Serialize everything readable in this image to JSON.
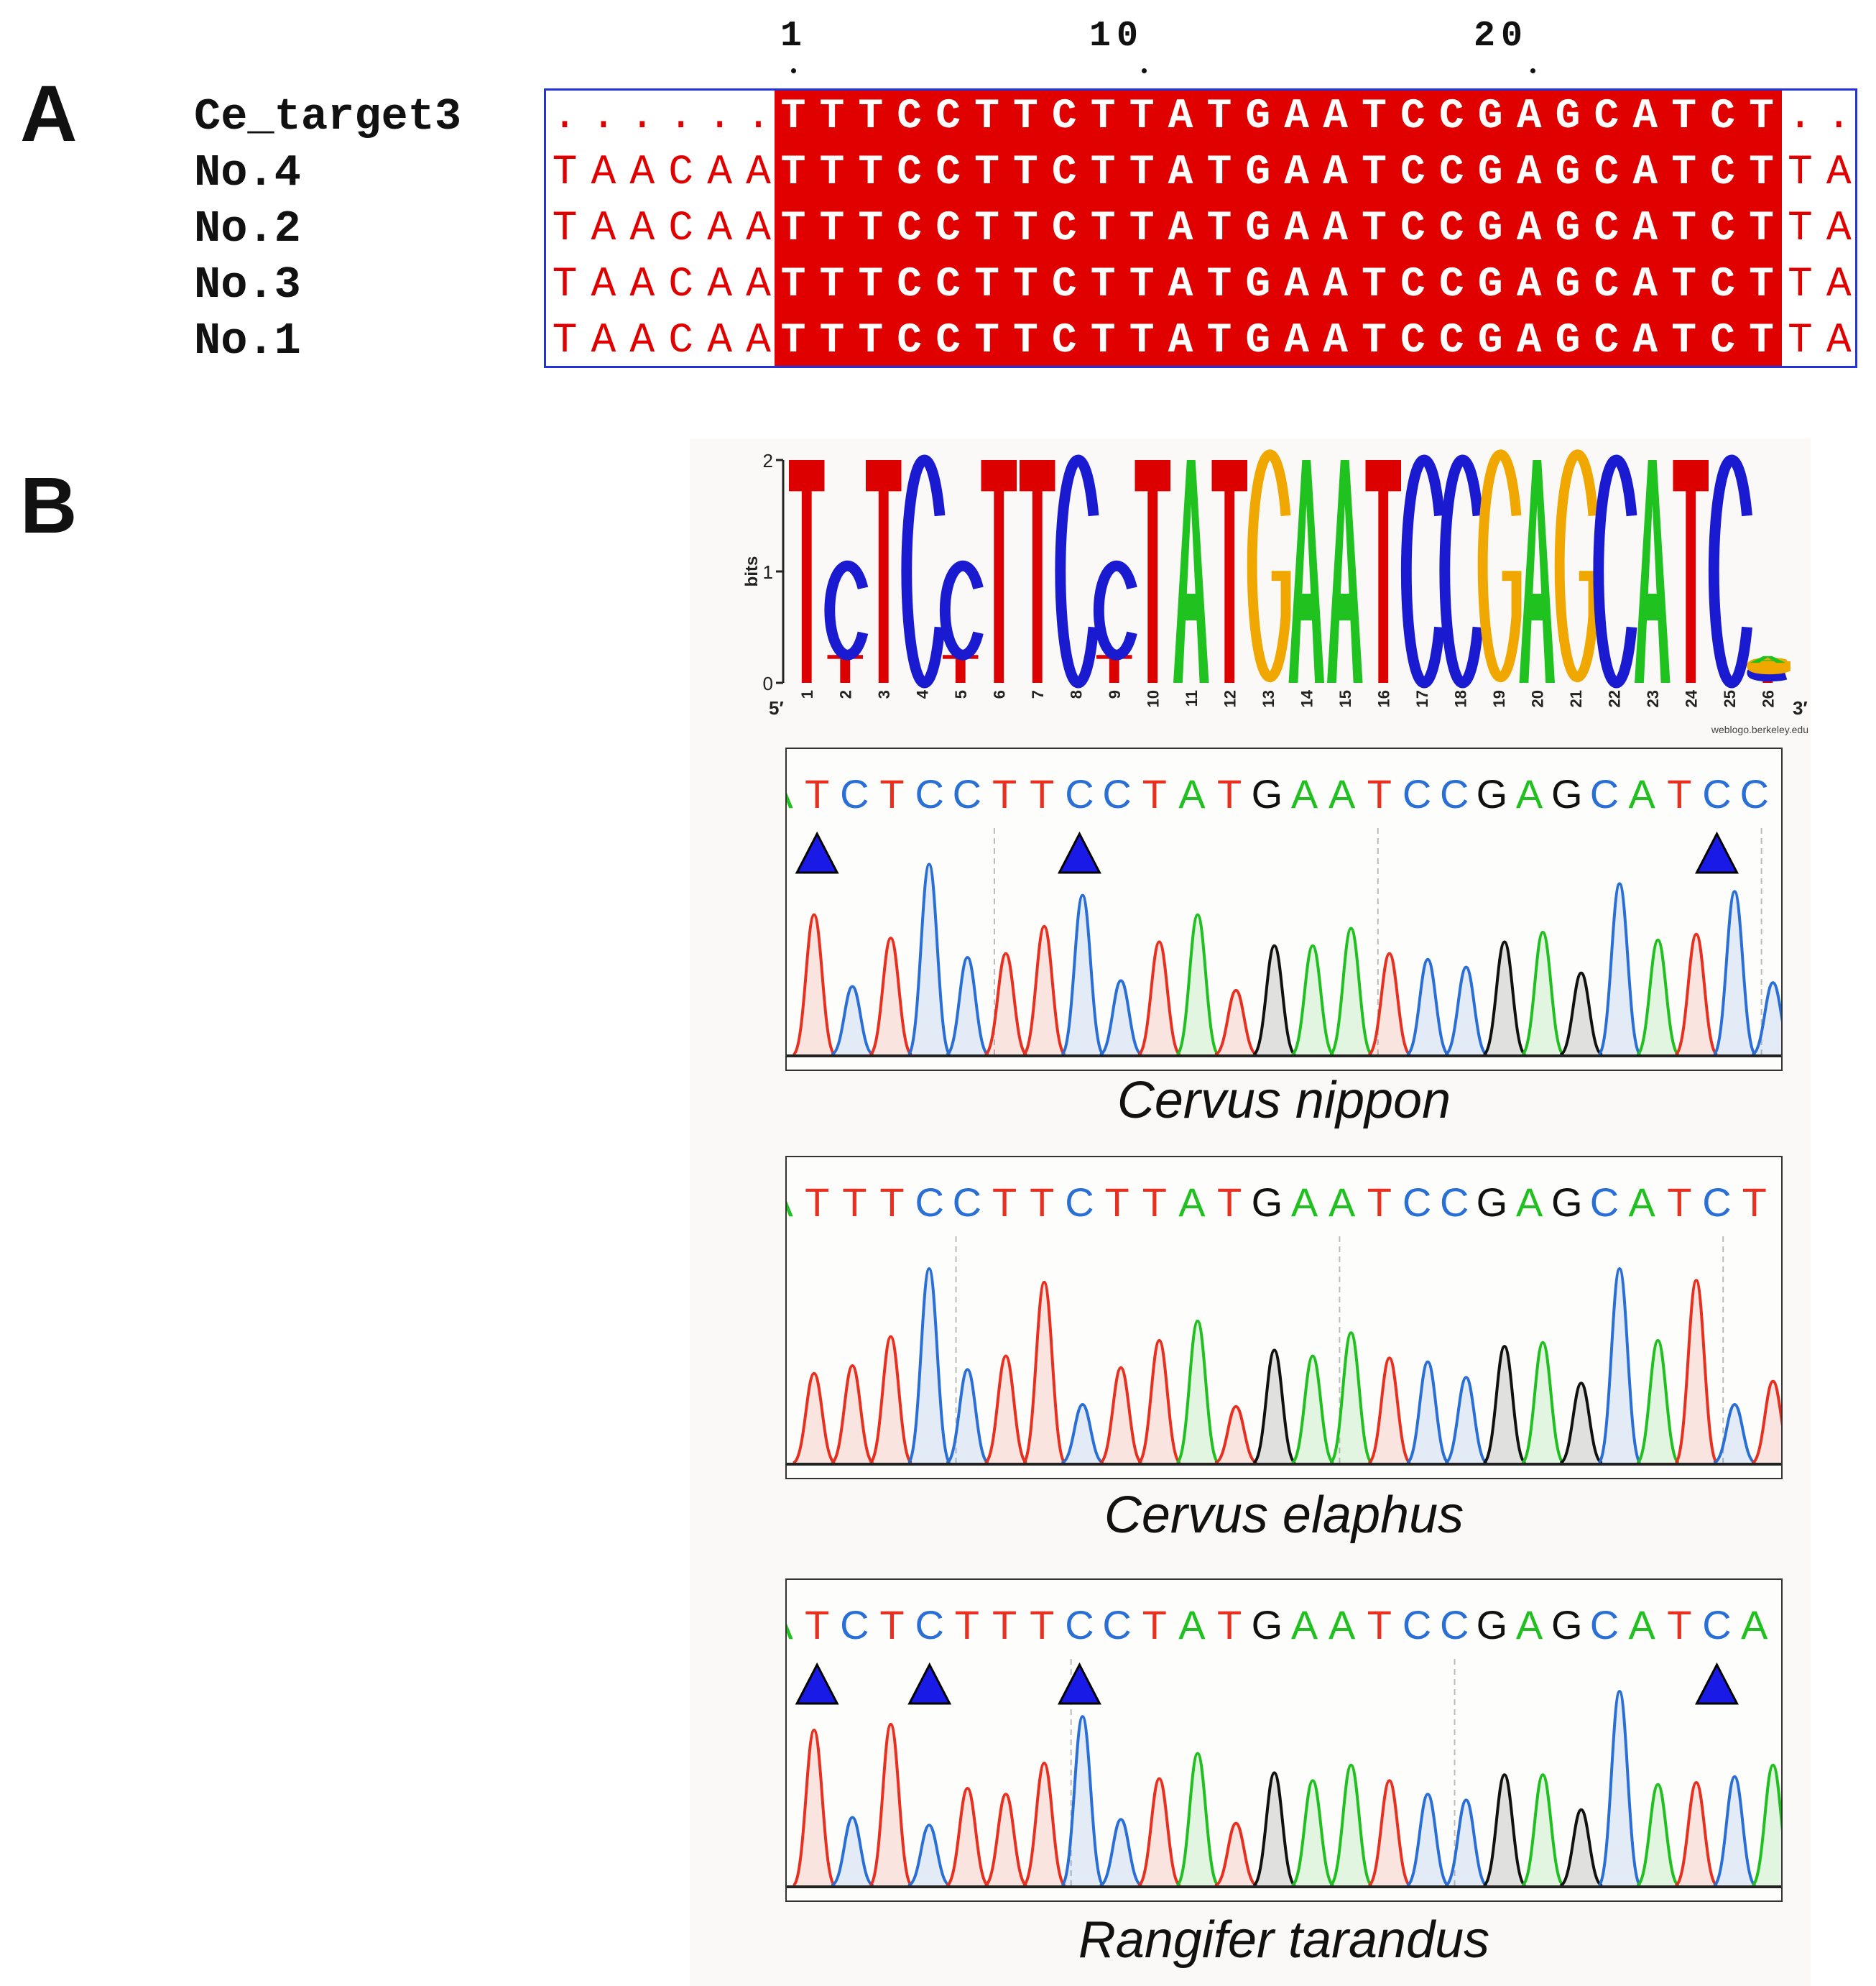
{
  "panels": {
    "a": "A",
    "b": "B"
  },
  "alignment": {
    "ruler": [
      "1",
      "10",
      "20"
    ],
    "rows": [
      {
        "name": "Ce_target3",
        "left": "......",
        "core": "TTTCCTTCTTATGAATCCGAGCATCT",
        "right": ".."
      },
      {
        "name": "No.4",
        "left": "TAACAA",
        "core": "TTTCCTTCTTATGAATCCGAGCATCT",
        "right": "TA"
      },
      {
        "name": "No.2",
        "left": "TAACAA",
        "core": "TTTCCTTCTTATGAATCCGAGCATCT",
        "right": "TA"
      },
      {
        "name": "No.3",
        "left": "TAACAA",
        "core": "TTTCCTTCTTATGAATCCGAGCATCT",
        "right": "TA"
      },
      {
        "name": "No.1",
        "left": "TAACAA",
        "core": "TTTCCTTCTTATGAATCCGAGCATCT",
        "right": "TA"
      }
    ],
    "colors": {
      "conserved_bg": "#e00000",
      "flank_text": "#e00000",
      "box": "#2233dd"
    }
  },
  "logo": {
    "ylabel": "bits",
    "yticks": [
      "0",
      "1",
      "2"
    ],
    "end5": "5′",
    "end3": "3′",
    "credit": "weblogo.berkeley.edu",
    "positions": [
      "1",
      "2",
      "3",
      "4",
      "5",
      "6",
      "7",
      "8",
      "9",
      "10",
      "11",
      "12",
      "13",
      "14",
      "15",
      "16",
      "17",
      "18",
      "19",
      "20",
      "21",
      "22",
      "23",
      "24",
      "25",
      "26"
    ],
    "stacks": [
      [
        [
          "T",
          2.0
        ]
      ],
      [
        [
          "T",
          0.25
        ],
        [
          "C",
          0.8
        ]
      ],
      [
        [
          "T",
          2.0
        ]
      ],
      [
        [
          "C",
          2.0
        ]
      ],
      [
        [
          "T",
          0.25
        ],
        [
          "C",
          0.8
        ]
      ],
      [
        [
          "T",
          2.0
        ]
      ],
      [
        [
          "T",
          2.0
        ]
      ],
      [
        [
          "C",
          2.0
        ]
      ],
      [
        [
          "T",
          0.25
        ],
        [
          "C",
          0.8
        ]
      ],
      [
        [
          "T",
          2.0
        ]
      ],
      [
        [
          "A",
          2.0
        ]
      ],
      [
        [
          "T",
          2.0
        ]
      ],
      [
        [
          "G",
          2.0
        ]
      ],
      [
        [
          "A",
          2.0
        ]
      ],
      [
        [
          "A",
          2.0
        ]
      ],
      [
        [
          "T",
          2.0
        ]
      ],
      [
        [
          "C",
          2.0
        ]
      ],
      [
        [
          "C",
          2.0
        ]
      ],
      [
        [
          "G",
          2.0
        ]
      ],
      [
        [
          "A",
          2.0
        ]
      ],
      [
        [
          "G",
          2.0
        ]
      ],
      [
        [
          "C",
          2.0
        ]
      ],
      [
        [
          "A",
          2.0
        ]
      ],
      [
        [
          "T",
          2.0
        ]
      ],
      [
        [
          "C",
          2.0
        ]
      ],
      [
        [
          "T",
          0.06
        ],
        [
          "C",
          0.06
        ],
        [
          "G",
          0.06
        ],
        [
          "A",
          0.06
        ]
      ]
    ],
    "base_colors": {
      "A": "#1fc21f",
      "C": "#1a1ad0",
      "G": "#f0a800",
      "T": "#dd0000"
    }
  },
  "chromatograms": [
    {
      "species": "Cervus nippon",
      "bases": "ATCTCCTTCCTATGAATCCGAGCATCC",
      "markers": [
        1,
        8,
        25
      ],
      "guides": [
        5,
        15,
        25
      ],
      "peaks": [
        [
          "T",
          0.72
        ],
        [
          "C",
          0.35
        ],
        [
          "T",
          0.6
        ],
        [
          "C",
          0.98
        ],
        [
          "C",
          0.5
        ],
        [
          "T",
          0.52
        ],
        [
          "T",
          0.66
        ],
        [
          "C",
          0.82
        ],
        [
          "C",
          0.38
        ],
        [
          "T",
          0.58
        ],
        [
          "A",
          0.72
        ],
        [
          "T",
          0.33
        ],
        [
          "G",
          0.56
        ],
        [
          "A",
          0.56
        ],
        [
          "A",
          0.65
        ],
        [
          "T",
          0.52
        ],
        [
          "C",
          0.49
        ],
        [
          "C",
          0.45
        ],
        [
          "G",
          0.58
        ],
        [
          "A",
          0.63
        ],
        [
          "G",
          0.42
        ],
        [
          "C",
          0.88
        ],
        [
          "A",
          0.59
        ],
        [
          "T",
          0.62
        ],
        [
          "C",
          0.84
        ],
        [
          "C",
          0.37
        ]
      ]
    },
    {
      "species": "Cervus elaphus",
      "bases": "ATTTCCTTCTTATGAATCCGAGCATCT",
      "markers": [],
      "guides": [
        4,
        14,
        24
      ],
      "peaks": [
        [
          "T",
          0.46
        ],
        [
          "T",
          0.5
        ],
        [
          "T",
          0.65
        ],
        [
          "C",
          1.0
        ],
        [
          "C",
          0.48
        ],
        [
          "T",
          0.55
        ],
        [
          "T",
          0.93
        ],
        [
          "C",
          0.3
        ],
        [
          "T",
          0.49
        ],
        [
          "T",
          0.63
        ],
        [
          "A",
          0.73
        ],
        [
          "T",
          0.29
        ],
        [
          "G",
          0.58
        ],
        [
          "A",
          0.55
        ],
        [
          "A",
          0.67
        ],
        [
          "T",
          0.54
        ],
        [
          "C",
          0.52
        ],
        [
          "C",
          0.44
        ],
        [
          "G",
          0.6
        ],
        [
          "A",
          0.62
        ],
        [
          "G",
          0.41
        ],
        [
          "C",
          1.0
        ],
        [
          "A",
          0.63
        ],
        [
          "T",
          0.94
        ],
        [
          "C",
          0.3
        ],
        [
          "T",
          0.42
        ]
      ]
    },
    {
      "species": "Rangifer tarandus",
      "bases": "ATCTCTTTCCTATGAATCCGAGCATCA",
      "markers": [
        1,
        4,
        8,
        25
      ],
      "guides": [
        7,
        17
      ],
      "peaks": [
        [
          "T",
          0.8
        ],
        [
          "C",
          0.35
        ],
        [
          "T",
          0.83
        ],
        [
          "C",
          0.31
        ],
        [
          "T",
          0.5
        ],
        [
          "T",
          0.47
        ],
        [
          "T",
          0.63
        ],
        [
          "C",
          0.87
        ],
        [
          "C",
          0.34
        ],
        [
          "T",
          0.55
        ],
        [
          "A",
          0.68
        ],
        [
          "T",
          0.32
        ],
        [
          "G",
          0.58
        ],
        [
          "A",
          0.54
        ],
        [
          "A",
          0.62
        ],
        [
          "T",
          0.54
        ],
        [
          "C",
          0.47
        ],
        [
          "C",
          0.44
        ],
        [
          "G",
          0.57
        ],
        [
          "A",
          0.57
        ],
        [
          "G",
          0.39
        ],
        [
          "C",
          1.0
        ],
        [
          "A",
          0.52
        ],
        [
          "T",
          0.53
        ],
        [
          "C",
          0.56
        ],
        [
          "A",
          0.62
        ]
      ]
    }
  ],
  "trace_colors": {
    "A": "#20c020",
    "C": "#2a6fd6",
    "G": "#111111",
    "T": "#e83020"
  },
  "marker_color": "#1a1ae6"
}
